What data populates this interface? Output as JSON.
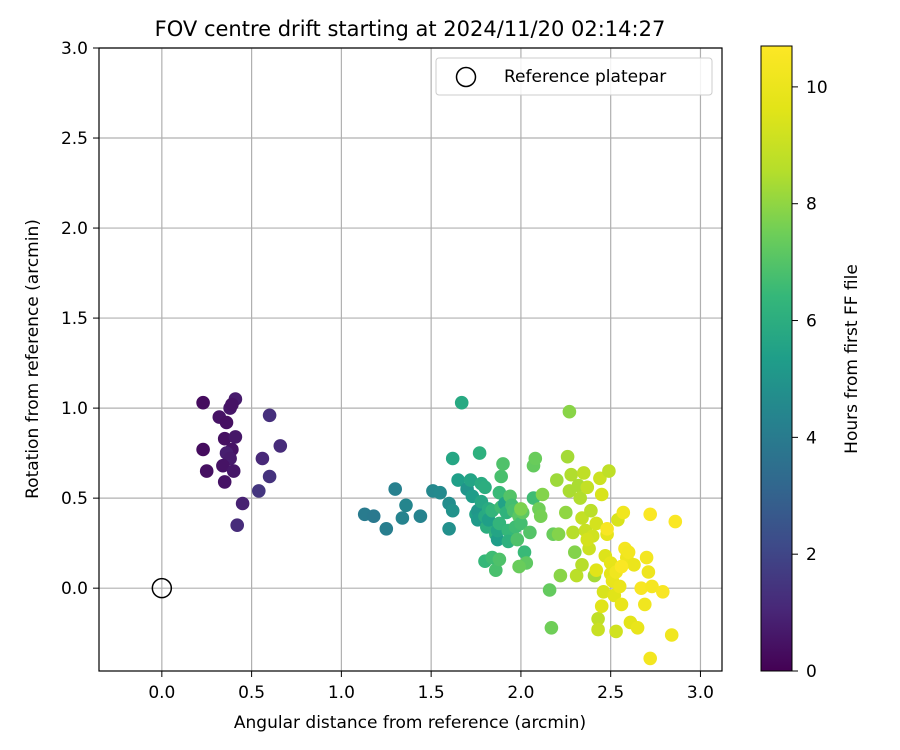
{
  "chart_data": {
    "type": "scatter",
    "title": "FOV centre drift starting at 2024/11/20 02:14:27",
    "xlabel": "Angular distance from reference (arcmin)",
    "ylabel": "Rotation from reference (arcmin)",
    "xlim": [
      -0.35,
      3.12
    ],
    "ylim": [
      -0.46,
      3.0
    ],
    "xticks": [
      "0.0",
      "0.5",
      "1.0",
      "1.5",
      "2.0",
      "2.5",
      "3.0"
    ],
    "xtick_values": [
      0,
      0.5,
      1.0,
      1.5,
      2.0,
      2.5,
      3.0
    ],
    "yticks": [
      "0.0",
      "0.5",
      "1.0",
      "1.5",
      "2.0",
      "2.5",
      "3.0"
    ],
    "ytick_values": [
      0,
      0.5,
      1.0,
      1.5,
      2.0,
      2.5,
      3.0
    ],
    "grid": true,
    "colormap": "viridis",
    "colorbar": {
      "label": "Hours from first FF file",
      "range": [
        0,
        10.7
      ],
      "ticks": [
        "0",
        "2",
        "4",
        "6",
        "8",
        "10"
      ],
      "tick_values": [
        0,
        2,
        4,
        6,
        8,
        10
      ]
    },
    "legend": {
      "placement": "top-right",
      "entries": [
        {
          "label": "Reference platepar",
          "marker": "open-circle"
        }
      ]
    },
    "reference_point": {
      "x": 0.0,
      "y": 0.0
    },
    "points": [
      [
        0.23,
        1.03,
        0.3
      ],
      [
        0.32,
        0.95,
        0.5
      ],
      [
        0.36,
        0.92,
        0.4
      ],
      [
        0.38,
        1.0,
        0.6
      ],
      [
        0.41,
        1.05,
        0.7
      ],
      [
        0.39,
        1.02,
        0.5
      ],
      [
        0.23,
        0.77,
        0.3
      ],
      [
        0.35,
        0.83,
        0.4
      ],
      [
        0.39,
        0.77,
        0.5
      ],
      [
        0.41,
        0.84,
        0.6
      ],
      [
        0.36,
        0.75,
        0.8
      ],
      [
        0.38,
        0.72,
        0.7
      ],
      [
        0.25,
        0.65,
        0.4
      ],
      [
        0.34,
        0.68,
        0.5
      ],
      [
        0.4,
        0.65,
        0.6
      ],
      [
        0.35,
        0.59,
        0.5
      ],
      [
        0.56,
        0.72,
        1.1
      ],
      [
        0.6,
        0.96,
        1.3
      ],
      [
        0.66,
        0.79,
        1.2
      ],
      [
        0.6,
        0.62,
        1.4
      ],
      [
        0.54,
        0.54,
        1.5
      ],
      [
        0.45,
        0.47,
        0.9
      ],
      [
        0.42,
        0.35,
        1.2
      ],
      [
        1.13,
        0.41,
        4.0
      ],
      [
        1.18,
        0.4,
        3.9
      ],
      [
        1.25,
        0.33,
        4.1
      ],
      [
        1.3,
        0.55,
        4.2
      ],
      [
        1.34,
        0.39,
        4.3
      ],
      [
        1.36,
        0.46,
        4.4
      ],
      [
        1.44,
        0.4,
        4.3
      ],
      [
        1.51,
        0.54,
        4.5
      ],
      [
        1.55,
        0.53,
        4.6
      ],
      [
        1.6,
        0.33,
        4.8
      ],
      [
        1.6,
        0.47,
        4.7
      ],
      [
        1.62,
        0.43,
        4.9
      ],
      [
        1.62,
        0.72,
        5.7
      ],
      [
        1.65,
        0.6,
        5.4
      ],
      [
        1.67,
        1.03,
        5.8
      ],
      [
        1.7,
        0.55,
        5.0
      ],
      [
        1.72,
        0.6,
        5.6
      ],
      [
        1.73,
        0.51,
        5.3
      ],
      [
        1.75,
        0.41,
        5.5
      ],
      [
        1.76,
        0.43,
        5.1
      ],
      [
        1.76,
        0.38,
        5.2
      ],
      [
        1.77,
        0.75,
        6.1
      ],
      [
        1.78,
        0.58,
        5.9
      ],
      [
        1.78,
        0.48,
        5.7
      ],
      [
        1.8,
        0.56,
        6.0
      ],
      [
        1.8,
        0.4,
        5.8
      ],
      [
        1.81,
        0.34,
        6.0
      ],
      [
        1.82,
        0.44,
        5.9
      ],
      [
        1.82,
        0.38,
        5.4
      ],
      [
        1.84,
        0.43,
        6.3
      ],
      [
        1.86,
        0.3,
        6.2
      ],
      [
        1.87,
        0.27,
        5.3
      ],
      [
        1.87,
        0.32,
        5.6
      ],
      [
        1.88,
        0.36,
        6.3
      ],
      [
        1.88,
        0.53,
        6.5
      ],
      [
        1.89,
        0.62,
        6.8
      ],
      [
        1.89,
        0.45,
        6.6
      ],
      [
        1.9,
        0.69,
        6.9
      ],
      [
        1.91,
        0.47,
        5.5
      ],
      [
        1.92,
        0.42,
        6.2
      ],
      [
        1.93,
        0.32,
        6.4
      ],
      [
        1.93,
        0.26,
        6.1
      ],
      [
        1.94,
        0.51,
        7.0
      ],
      [
        1.95,
        0.46,
        6.7
      ],
      [
        1.96,
        0.43,
        6.8
      ],
      [
        1.97,
        0.34,
        6.6
      ],
      [
        1.98,
        0.27,
        6.9
      ],
      [
        1.99,
        0.4,
        7.1
      ],
      [
        2.0,
        0.36,
        6.7
      ],
      [
        2.01,
        0.42,
        7.2
      ],
      [
        2.02,
        0.2,
        6.5
      ],
      [
        2.03,
        0.14,
        7.2
      ],
      [
        2.05,
        0.31,
        7.0
      ],
      [
        2.07,
        0.5,
        6.6
      ],
      [
        2.07,
        0.68,
        7.3
      ],
      [
        2.08,
        0.72,
        7.4
      ],
      [
        2.1,
        0.44,
        7.5
      ],
      [
        2.11,
        0.4,
        7.6
      ],
      [
        2.12,
        0.52,
        7.8
      ],
      [
        1.99,
        0.12,
        7.4
      ],
      [
        1.86,
        0.1,
        6.8
      ],
      [
        1.8,
        0.15,
        6.4
      ],
      [
        1.84,
        0.17,
        6.6
      ],
      [
        1.88,
        0.16,
        6.9
      ],
      [
        2.0,
        0.44,
        7.7
      ],
      [
        2.16,
        -0.01,
        7.3
      ],
      [
        2.17,
        -0.22,
        7.5
      ],
      [
        2.18,
        0.3,
        7.4
      ],
      [
        2.2,
        0.6,
        8.2
      ],
      [
        2.21,
        0.3,
        7.8
      ],
      [
        2.22,
        0.07,
        7.9
      ],
      [
        2.25,
        0.42,
        8.0
      ],
      [
        2.26,
        0.73,
        8.3
      ],
      [
        2.27,
        0.98,
        7.9
      ],
      [
        2.27,
        0.54,
        8.4
      ],
      [
        2.28,
        0.63,
        8.5
      ],
      [
        2.29,
        0.31,
        8.6
      ],
      [
        2.3,
        0.2,
        7.8
      ],
      [
        2.31,
        0.07,
        8.7
      ],
      [
        2.32,
        0.57,
        8.4
      ],
      [
        2.33,
        0.5,
        8.5
      ],
      [
        2.34,
        0.39,
        8.9
      ],
      [
        2.34,
        0.13,
        8.6
      ],
      [
        2.35,
        0.64,
        8.8
      ],
      [
        2.36,
        0.32,
        9.0
      ],
      [
        2.37,
        0.56,
        8.9
      ],
      [
        2.38,
        0.22,
        9.1
      ],
      [
        2.39,
        0.43,
        8.7
      ],
      [
        2.4,
        0.29,
        9.2
      ],
      [
        2.41,
        0.07,
        8.3
      ],
      [
        2.42,
        0.36,
        9.3
      ],
      [
        2.43,
        -0.17,
        8.8
      ],
      [
        2.43,
        -0.23,
        9.0
      ],
      [
        2.44,
        0.61,
        9.1
      ],
      [
        2.45,
        0.52,
        9.4
      ],
      [
        2.45,
        -0.1,
        9.6
      ],
      [
        2.46,
        -0.02,
        9.4
      ],
      [
        2.47,
        0.18,
        9.5
      ],
      [
        2.48,
        0.3,
        9.8
      ],
      [
        2.49,
        0.65,
        8.8
      ],
      [
        2.5,
        0.14,
        9.8
      ],
      [
        2.5,
        0.08,
        9.7
      ],
      [
        2.51,
        0.04,
        9.9
      ],
      [
        2.52,
        -0.04,
        9.6
      ],
      [
        2.53,
        -0.24,
        9.2
      ],
      [
        2.54,
        0.38,
        9.4
      ],
      [
        2.55,
        0.01,
        10.0
      ],
      [
        2.56,
        -0.09,
        9.9
      ],
      [
        2.57,
        0.42,
        10.2
      ],
      [
        2.58,
        0.22,
        10.4
      ],
      [
        2.59,
        0.17,
        10.1
      ],
      [
        2.6,
        0.2,
        10.3
      ],
      [
        2.61,
        -0.19,
        9.7
      ],
      [
        2.63,
        0.13,
        10.0
      ],
      [
        2.65,
        -0.22,
        9.9
      ],
      [
        2.67,
        0.0,
        10.5
      ],
      [
        2.69,
        -0.09,
        10.2
      ],
      [
        2.7,
        0.17,
        10.3
      ],
      [
        2.71,
        0.09,
        10.1
      ],
      [
        2.72,
        0.41,
        10.6
      ],
      [
        2.73,
        0.01,
        10.4
      ],
      [
        2.72,
        -0.39,
        10.3
      ],
      [
        2.79,
        -0.02,
        10.5
      ],
      [
        2.84,
        -0.26,
        10.2
      ],
      [
        2.86,
        0.37,
        10.6
      ],
      [
        2.48,
        0.33,
        10.5
      ],
      [
        2.53,
        0.09,
        10.2
      ],
      [
        2.56,
        0.12,
        10.6
      ],
      [
        2.42,
        0.1,
        9.6
      ],
      [
        2.37,
        0.27,
        9.3
      ]
    ]
  }
}
